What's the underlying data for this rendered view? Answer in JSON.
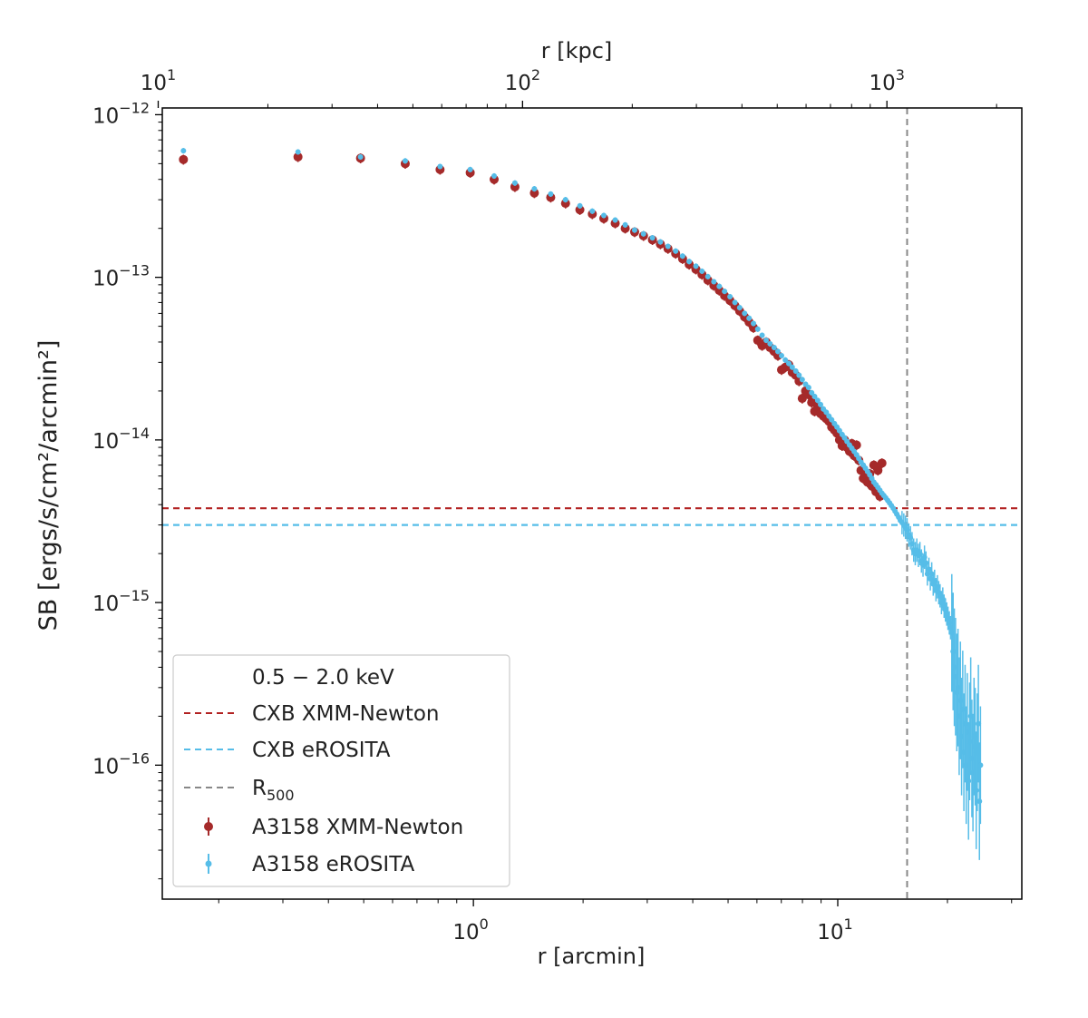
{
  "chart_data": {
    "type": "scatter",
    "scale": "log-log",
    "xlabel": "r [arcmin]",
    "ylabel": "SB [ergs/s/cm²/arcmin²]",
    "top_xlabel": "r [kpc]",
    "xlim": [
      0.14,
      32
    ],
    "ylim": [
      1.5e-17,
      1.1e-12
    ],
    "kpc_per_arcmin": 73.3,
    "x_ticks": [
      {
        "value": 1,
        "base": "10",
        "exp": "0"
      },
      {
        "value": 10,
        "base": "10",
        "exp": "1"
      }
    ],
    "top_ticks": [
      {
        "value": 10,
        "base": "10",
        "exp": "1"
      },
      {
        "value": 100,
        "base": "10",
        "exp": "2"
      },
      {
        "value": 1000,
        "base": "10",
        "exp": "3"
      }
    ],
    "y_ticks": [
      {
        "value": 1e-12,
        "base": "10",
        "exp": "−12"
      },
      {
        "value": 1e-13,
        "base": "10",
        "exp": "−13"
      },
      {
        "value": 1e-14,
        "base": "10",
        "exp": "−14"
      },
      {
        "value": 1e-15,
        "base": "10",
        "exp": "−15"
      },
      {
        "value": 1e-16,
        "base": "10",
        "exp": "−16"
      }
    ],
    "legend": {
      "title": "0.5 − 2.0 keV",
      "location": "lower-left",
      "entries": [
        {
          "label": "CXB XMM-Newton",
          "kind": "dashed",
          "color": "#b22222"
        },
        {
          "label": "CXB eROSITA",
          "kind": "dashed",
          "color": "#56bde8"
        },
        {
          "label": "R",
          "sub": "500",
          "kind": "dashed",
          "color": "#888888"
        },
        {
          "label": "A3158 XMM-Newton",
          "kind": "errorbar",
          "color": "#a52a2a"
        },
        {
          "label": "A3158 eROSITA",
          "kind": "errorbar",
          "color": "#56bde8"
        }
      ]
    },
    "hlines": [
      {
        "name": "CXB XMM-Newton",
        "y": 3.8e-15,
        "color": "#b22222"
      },
      {
        "name": "CXB eROSITA",
        "y": 3e-15,
        "color": "#56bde8"
      }
    ],
    "vline": {
      "name": "R500",
      "x": 15.5,
      "color": "#888888"
    },
    "series": [
      {
        "name": "A3158 XMM-Newton",
        "color": "#a52a2a",
        "points": [
          [
            0.16,
            5.3e-13
          ],
          [
            0.33,
            5.5e-13
          ],
          [
            0.49,
            5.4e-13
          ],
          [
            0.65,
            5e-13
          ],
          [
            0.81,
            4.6e-13
          ],
          [
            0.98,
            4.4e-13
          ],
          [
            1.14,
            4e-13
          ],
          [
            1.3,
            3.6e-13
          ],
          [
            1.47,
            3.3e-13
          ],
          [
            1.63,
            3.1e-13
          ],
          [
            1.79,
            2.85e-13
          ],
          [
            1.96,
            2.6e-13
          ],
          [
            2.12,
            2.45e-13
          ],
          [
            2.28,
            2.3e-13
          ],
          [
            2.45,
            2.15e-13
          ],
          [
            2.61,
            2e-13
          ],
          [
            2.77,
            1.9e-13
          ],
          [
            2.93,
            1.8e-13
          ],
          [
            3.1,
            1.7e-13
          ],
          [
            3.26,
            1.6e-13
          ],
          [
            3.42,
            1.5e-13
          ],
          [
            3.59,
            1.4e-13
          ],
          [
            3.75,
            1.3e-13
          ],
          [
            3.91,
            1.2e-13
          ],
          [
            4.08,
            1.12e-13
          ],
          [
            4.24,
            1.04e-13
          ],
          [
            4.4,
            9.6e-14
          ],
          [
            4.57,
            8.9e-14
          ],
          [
            4.73,
            8.3e-14
          ],
          [
            4.89,
            7.7e-14
          ],
          [
            5.06,
            7.2e-14
          ],
          [
            5.22,
            6.7e-14
          ],
          [
            5.38,
            6.2e-14
          ],
          [
            5.55,
            5.7e-14
          ],
          [
            5.71,
            5.3e-14
          ],
          [
            5.87,
            4.9e-14
          ],
          [
            6.03,
            4.1e-14
          ],
          [
            6.2,
            3.8e-14
          ],
          [
            6.36,
            4e-14
          ],
          [
            6.52,
            3.7e-14
          ],
          [
            6.69,
            3.5e-14
          ],
          [
            6.85,
            3.3e-14
          ],
          [
            7.01,
            2.7e-14
          ],
          [
            7.18,
            2.8e-14
          ],
          [
            7.34,
            2.9e-14
          ],
          [
            7.5,
            2.6e-14
          ],
          [
            7.67,
            2.5e-14
          ],
          [
            7.83,
            2.3e-14
          ],
          [
            7.99,
            1.8e-14
          ],
          [
            8.16,
            2e-14
          ],
          [
            8.32,
            1.9e-14
          ],
          [
            8.48,
            1.7e-14
          ],
          [
            8.64,
            1.5e-14
          ],
          [
            8.81,
            1.6e-14
          ],
          [
            8.97,
            1.45e-14
          ],
          [
            9.13,
            1.4e-14
          ],
          [
            9.3,
            1.35e-14
          ],
          [
            9.46,
            1.3e-14
          ],
          [
            9.62,
            1.2e-14
          ],
          [
            9.79,
            1.15e-14
          ],
          [
            9.95,
            1.1e-14
          ],
          [
            10.11,
            1e-14
          ],
          [
            10.28,
            9.2e-15
          ],
          [
            10.44,
            1e-14
          ],
          [
            10.6,
            9e-15
          ],
          [
            10.77,
            8.5e-15
          ],
          [
            10.93,
            9.5e-15
          ],
          [
            11.09,
            8e-15
          ],
          [
            11.26,
            9.3e-15
          ],
          [
            11.42,
            7.5e-15
          ],
          [
            11.58,
            6.5e-15
          ],
          [
            11.75,
            5.8e-15
          ],
          [
            11.91,
            6e-15
          ],
          [
            12.07,
            5.5e-15
          ],
          [
            12.24,
            6.2e-15
          ],
          [
            12.4,
            5.2e-15
          ],
          [
            12.56,
            7e-15
          ],
          [
            12.73,
            4.8e-15
          ],
          [
            12.89,
            6.5e-15
          ],
          [
            13.05,
            4.5e-15
          ],
          [
            13.22,
            7.2e-15
          ]
        ]
      },
      {
        "name": "A3158 eROSITA",
        "color": "#56bde8",
        "points": [
          [
            0.16,
            6e-13
          ],
          [
            0.33,
            5.9e-13
          ],
          [
            0.49,
            5.5e-13
          ],
          [
            0.65,
            5.2e-13
          ],
          [
            0.81,
            4.8e-13
          ],
          [
            0.98,
            4.6e-13
          ],
          [
            1.14,
            4.2e-13
          ],
          [
            1.3,
            3.8e-13
          ],
          [
            1.47,
            3.5e-13
          ],
          [
            1.63,
            3.25e-13
          ],
          [
            1.79,
            3e-13
          ],
          [
            1.96,
            2.75e-13
          ],
          [
            2.12,
            2.55e-13
          ],
          [
            2.28,
            2.4e-13
          ],
          [
            2.45,
            2.25e-13
          ],
          [
            2.61,
            2.1e-13
          ],
          [
            2.77,
            1.95e-13
          ],
          [
            2.93,
            1.85e-13
          ],
          [
            3.1,
            1.75e-13
          ],
          [
            3.26,
            1.65e-13
          ],
          [
            3.42,
            1.55e-13
          ],
          [
            3.59,
            1.45e-13
          ],
          [
            3.75,
            1.35e-13
          ],
          [
            3.91,
            1.25e-13
          ],
          [
            4.08,
            1.17e-13
          ],
          [
            4.24,
            1.09e-13
          ],
          [
            4.4,
            1.01e-13
          ],
          [
            4.57,
            9.4e-14
          ],
          [
            4.73,
            8.8e-14
          ],
          [
            4.89,
            8.2e-14
          ],
          [
            5.06,
            7.6e-14
          ],
          [
            5.22,
            7e-14
          ],
          [
            5.38,
            6.5e-14
          ],
          [
            5.55,
            6e-14
          ],
          [
            5.71,
            5.6e-14
          ],
          [
            5.87,
            5.2e-14
          ],
          [
            6.03,
            4.8e-14
          ],
          [
            6.2,
            4.4e-14
          ],
          [
            6.36,
            4.1e-14
          ],
          [
            6.52,
            3.9e-14
          ],
          [
            6.69,
            3.7e-14
          ],
          [
            6.85,
            3.5e-14
          ],
          [
            7.01,
            3.3e-14
          ],
          [
            7.18,
            3.1e-14
          ],
          [
            7.34,
            2.95e-14
          ],
          [
            7.5,
            2.8e-14
          ],
          [
            7.67,
            2.65e-14
          ],
          [
            7.83,
            2.5e-14
          ],
          [
            7.99,
            2.35e-14
          ],
          [
            8.16,
            2.2e-14
          ],
          [
            8.32,
            2.1e-14
          ],
          [
            8.48,
            1.95e-14
          ],
          [
            8.64,
            1.85e-14
          ],
          [
            8.81,
            1.75e-14
          ],
          [
            8.97,
            1.65e-14
          ],
          [
            9.13,
            1.55e-14
          ],
          [
            9.3,
            1.48e-14
          ],
          [
            9.46,
            1.4e-14
          ],
          [
            9.62,
            1.33e-14
          ],
          [
            9.79,
            1.26e-14
          ],
          [
            9.95,
            1.2e-14
          ],
          [
            10.11,
            1.14e-14
          ],
          [
            10.28,
            1.08e-14
          ],
          [
            10.44,
            1.03e-14
          ],
          [
            10.6,
            9.8e-15
          ],
          [
            10.77,
            9.3e-15
          ],
          [
            10.93,
            8.9e-15
          ],
          [
            11.09,
            8.5e-15
          ],
          [
            11.26,
            8.1e-15
          ],
          [
            11.42,
            7.7e-15
          ],
          [
            11.58,
            7.3e-15
          ],
          [
            11.75,
            7e-15
          ],
          [
            11.91,
            6.7e-15
          ],
          [
            12.07,
            6.4e-15
          ],
          [
            12.24,
            6.1e-15
          ],
          [
            12.4,
            5.8e-15
          ],
          [
            12.56,
            5.5e-15
          ],
          [
            12.73,
            5.3e-15
          ],
          [
            12.89,
            5.1e-15
          ],
          [
            13.05,
            4.9e-15
          ],
          [
            13.22,
            4.7e-15
          ],
          [
            13.38,
            4.55e-15
          ],
          [
            13.54,
            4.4e-15
          ],
          [
            13.71,
            4.25e-15
          ],
          [
            13.87,
            4.1e-15
          ],
          [
            14.03,
            3.95e-15
          ],
          [
            14.2,
            3.8e-15
          ],
          [
            14.36,
            3.65e-15
          ],
          [
            14.52,
            3.5e-15
          ],
          [
            14.69,
            3.35e-15
          ],
          [
            14.85,
            3.2e-15
          ],
          [
            15.01,
            3.1e-15
          ],
          [
            15.18,
            3e-15
          ],
          [
            15.34,
            2.9e-15
          ],
          [
            15.5,
            2.8e-15
          ],
          [
            15.67,
            2.6e-15
          ],
          [
            15.83,
            2.5e-15
          ],
          [
            15.99,
            2.3e-15
          ],
          [
            16.16,
            2.1e-15
          ],
          [
            16.32,
            2e-15
          ],
          [
            16.48,
            2.1e-15
          ],
          [
            16.65,
            1.95e-15
          ],
          [
            16.81,
            2e-15
          ],
          [
            16.97,
            1.8e-15
          ],
          [
            17.14,
            1.7e-15
          ],
          [
            17.3,
            1.9e-15
          ],
          [
            17.46,
            1.75e-15
          ],
          [
            17.62,
            1.5e-15
          ],
          [
            17.79,
            1.6e-15
          ],
          [
            17.95,
            1.4e-15
          ],
          [
            18.11,
            1.5e-15
          ],
          [
            18.28,
            1.3e-15
          ],
          [
            18.44,
            1.35e-15
          ],
          [
            18.6,
            1.2e-15
          ],
          [
            18.77,
            1.25e-15
          ],
          [
            18.93,
            1.15e-15
          ],
          [
            19.09,
            1.1e-15
          ],
          [
            19.26,
            1e-15
          ],
          [
            19.42,
            1.05e-15
          ],
          [
            19.58,
            9.5e-16
          ],
          [
            19.75,
            9e-16
          ],
          [
            19.91,
            8.5e-16
          ],
          [
            20.07,
            8e-16
          ],
          [
            20.24,
            7.5e-16
          ],
          [
            20.4,
            7e-16
          ],
          [
            20.56,
            6.5e-16
          ],
          [
            20.73,
            5e-16
          ],
          [
            20.89,
            4e-16
          ],
          [
            21.05,
            3.5e-16
          ],
          [
            21.22,
            2.8e-16
          ],
          [
            21.38,
            3e-16
          ],
          [
            21.54,
            2e-16
          ],
          [
            21.71,
            2.5e-16
          ],
          [
            21.87,
            1.5e-16
          ],
          [
            22.03,
            2.2e-16
          ],
          [
            22.19,
            1.2e-16
          ],
          [
            22.36,
            1.8e-16
          ],
          [
            22.52,
            1e-16
          ],
          [
            22.68,
            1.6e-16
          ],
          [
            22.85,
            8e-17
          ],
          [
            23.01,
            1.4e-16
          ],
          [
            23.17,
            2e-16
          ],
          [
            23.34,
            1.1e-16
          ],
          [
            23.5,
            9e-17
          ],
          [
            23.66,
            1.5e-16
          ],
          [
            23.83,
            1.3e-16
          ],
          [
            23.99,
            7e-17
          ],
          [
            24.15,
            1.2e-16
          ],
          [
            24.32,
            1.8e-16
          ],
          [
            24.48,
            6e-17
          ],
          [
            24.64,
            1e-16
          ]
        ]
      }
    ]
  }
}
